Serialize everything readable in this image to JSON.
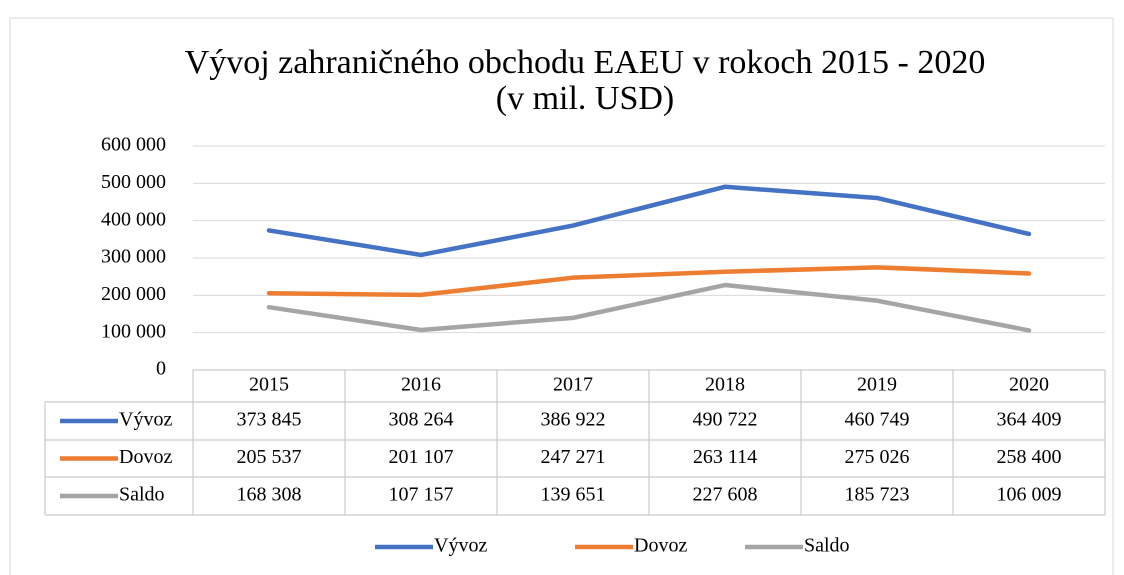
{
  "chart_data": {
    "type": "line",
    "title": [
      "Vývoj zahraničného obchodu EAEU v rokoch 2015 - 2020",
      "(v mil. USD)"
    ],
    "categories": [
      "2015",
      "2016",
      "2017",
      "2018",
      "2019",
      "2020"
    ],
    "series": [
      {
        "name": "Vývoz",
        "color": "#4472c4",
        "values": [
          373845,
          308264,
          386922,
          490722,
          460749,
          364409
        ],
        "value_labels": [
          "373 845",
          "308 264",
          "386 922",
          "490 722",
          "460 749",
          "364 409"
        ]
      },
      {
        "name": "Dovoz",
        "color": "#ed7d31",
        "values": [
          205537,
          201107,
          247271,
          263114,
          275026,
          258400
        ],
        "value_labels": [
          "205 537",
          "201 107",
          "247 271",
          "263 114",
          "275 026",
          "258 400"
        ]
      },
      {
        "name": "Saldo",
        "color": "#a5a5a5",
        "values": [
          168308,
          107157,
          139651,
          227608,
          185723,
          106009
        ],
        "value_labels": [
          "168 308",
          "107 157",
          "139 651",
          "227 608",
          "185 723",
          "106 009"
        ]
      }
    ],
    "ylim": [
      0,
      600000
    ],
    "yticks": [
      0,
      {
        "value": 100000,
        "label": "100 000"
      },
      {
        "value": 200000,
        "label": "200 000"
      },
      {
        "value": 300000,
        "label": "300 000"
      },
      {
        "value": 400000,
        "label": "400 000"
      },
      {
        "value": 500000,
        "label": "500 000"
      },
      {
        "value": 600000,
        "label": "600 000"
      }
    ],
    "grid": true,
    "legend": "bottom",
    "data_table": true
  }
}
